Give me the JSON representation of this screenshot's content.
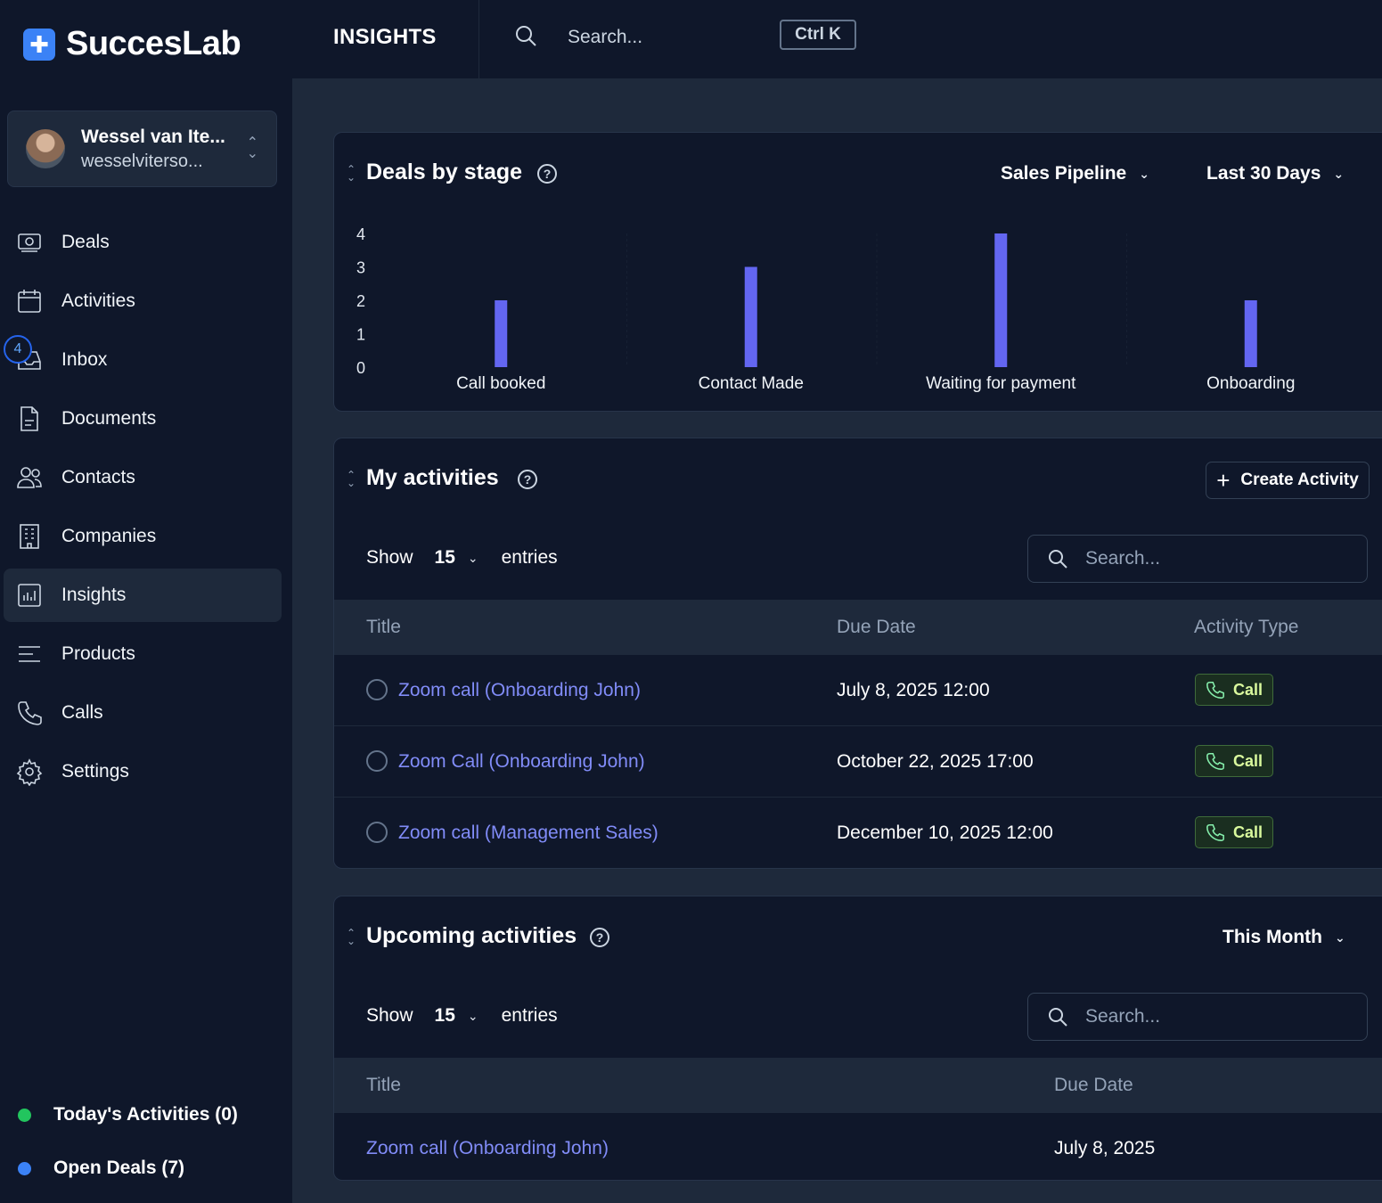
{
  "brand": {
    "logo_glyph": "✚",
    "name": "SuccesLab"
  },
  "user": {
    "name": "Wessel van Ite...",
    "email": "wesselviterso..."
  },
  "nav": [
    {
      "label": "Deals",
      "icon": "deals-icon"
    },
    {
      "label": "Activities",
      "icon": "calendar-icon"
    },
    {
      "label": "Inbox",
      "icon": "inbox-icon",
      "badge": "4"
    },
    {
      "label": "Documents",
      "icon": "document-icon"
    },
    {
      "label": "Contacts",
      "icon": "contacts-icon"
    },
    {
      "label": "Companies",
      "icon": "building-icon"
    },
    {
      "label": "Insights",
      "icon": "chart-icon",
      "active": true
    },
    {
      "label": "Products",
      "icon": "list-icon"
    },
    {
      "label": "Calls",
      "icon": "phone-icon"
    },
    {
      "label": "Settings",
      "icon": "gear-icon"
    }
  ],
  "bottom_stats": [
    {
      "label": "Today's Activities (0)",
      "color": "#22c55e"
    },
    {
      "label": "Open Deals (7)",
      "color": "#3b82f6"
    }
  ],
  "topbar": {
    "title": "INSIGHTS",
    "search_placeholder": "Search...",
    "shortcut": "Ctrl K"
  },
  "deals_card": {
    "title": "Deals by stage",
    "pipeline": "Sales Pipeline",
    "period": "Last 30 Days"
  },
  "chart_data": {
    "type": "bar",
    "title": "Deals by stage",
    "categories": [
      "Call booked",
      "Contact Made",
      "Waiting for payment",
      "Onboarding"
    ],
    "values": [
      2,
      3,
      4,
      2
    ],
    "yticks": [
      "4",
      "3",
      "2",
      "1",
      "0"
    ],
    "ylim": [
      0,
      4
    ],
    "bar_color": "#6366f1"
  },
  "activities_card": {
    "title": "My activities",
    "create_label": "Create Activity",
    "show_label": "Show",
    "entries_count": "15",
    "entries_label": "entries",
    "search_placeholder": "Search...",
    "columns": [
      "Title",
      "Due Date",
      "Activity Type"
    ],
    "rows": [
      {
        "title": "Zoom call (Onboarding John)",
        "due": "July 8, 2025 12:00",
        "type": "Call"
      },
      {
        "title": "Zoom Call (Onboarding John)",
        "due": "October 22, 2025 17:00",
        "type": "Call"
      },
      {
        "title": "Zoom call (Management Sales)",
        "due": "December 10, 2025 12:00",
        "type": "Call"
      }
    ]
  },
  "upcoming_card": {
    "title": "Upcoming activities",
    "period": "This Month",
    "show_label": "Show",
    "entries_count": "15",
    "entries_label": "entries",
    "search_placeholder": "Search...",
    "columns": [
      "Title",
      "Due Date"
    ],
    "rows": [
      {
        "title": "Zoom call (Onboarding John)",
        "due": "July 8, 2025"
      }
    ]
  },
  "colors": {
    "accent": "#6366f1",
    "link": "#818cf8",
    "bg": "#0f172a",
    "panel": "#1e293b"
  }
}
